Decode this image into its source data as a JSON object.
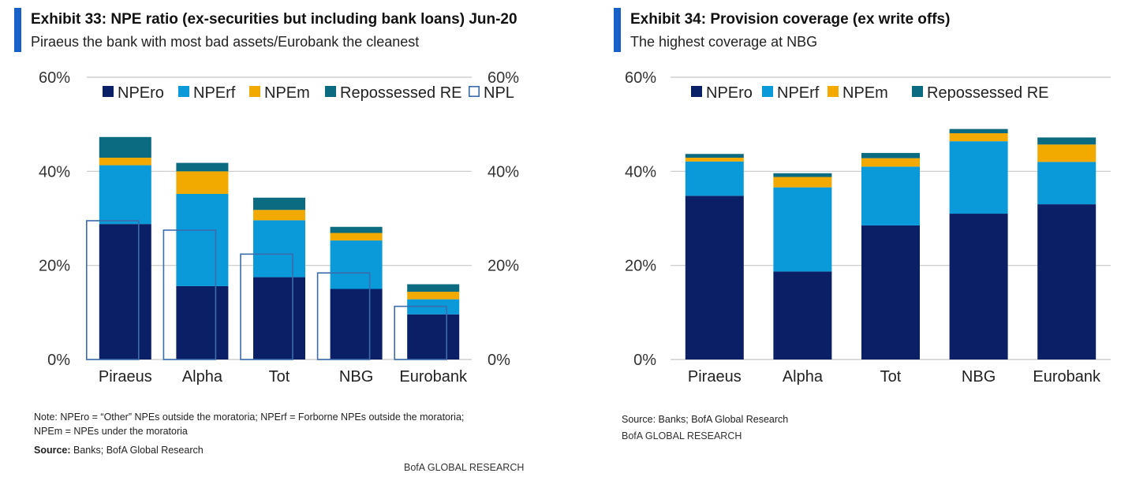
{
  "left": {
    "title": "Exhibit 33: NPE ratio (ex-securities but including bank loans) Jun-20",
    "subtitle": "Piraeus the bank with most bad assets/Eurobank the cleanest",
    "note_line1": "Note: NPEro = “Other” NPEs  outside the moratoria; NPErf = Forborne NPEs outside  the moratoria;",
    "note_line2": "NPEm = NPEs under the moratoria",
    "source_label": "Source:",
    "source_text": " Banks; BofA Global Research",
    "credit": "BofA GLOBAL RESEARCH"
  },
  "right": {
    "title": "Exhibit 34: Provision coverage (ex write offs)",
    "subtitle": "The highest coverage at NBG",
    "source": "Source:  Banks; BofA Global Research",
    "credit": "BofA GLOBAL RESEARCH"
  },
  "colors": {
    "NPEro": "#0b1f66",
    "NPErf": "#0a9ad9",
    "NPEm": "#f2a900",
    "Repossessed RE": "#0b6b80",
    "NPL": "#3b6cab",
    "grid": "#c8c8c8"
  },
  "chart_data": [
    {
      "type": "bar",
      "stacked": true,
      "categories": [
        "Piraeus",
        "Alpha",
        "Tot",
        "NBG",
        "Eurobank"
      ],
      "series": [
        {
          "name": "NPEro",
          "values": [
            28.8,
            15.6,
            17.5,
            15.0,
            9.6
          ]
        },
        {
          "name": "NPErf",
          "values": [
            12.5,
            19.6,
            12.1,
            10.3,
            3.2
          ]
        },
        {
          "name": "NPEm",
          "values": [
            1.6,
            4.8,
            2.2,
            1.6,
            1.6
          ]
        },
        {
          "name": "Repossessed RE",
          "values": [
            4.4,
            1.8,
            2.6,
            1.3,
            1.6
          ]
        }
      ],
      "outline_series": {
        "name": "NPL",
        "values": [
          29.5,
          27.5,
          22.4,
          18.4,
          11.3
        ]
      },
      "yticks": [
        "0%",
        "20%",
        "40%",
        "60%"
      ],
      "ylim": [
        0,
        60
      ],
      "secondary_axis": true,
      "legend": [
        "NPEro",
        "NPErf",
        "NPEm",
        "Repossessed RE",
        "NPL"
      ]
    },
    {
      "type": "bar",
      "stacked": true,
      "categories": [
        "Piraeus",
        "Alpha",
        "Tot",
        "NBG",
        "Eurobank"
      ],
      "series": [
        {
          "name": "NPEro",
          "values": [
            34.8,
            18.7,
            28.5,
            31.0,
            33.0
          ]
        },
        {
          "name": "NPErf",
          "values": [
            7.3,
            17.9,
            12.5,
            15.4,
            9.0
          ]
        },
        {
          "name": "NPEm",
          "values": [
            0.8,
            2.2,
            1.8,
            1.7,
            3.7
          ]
        },
        {
          "name": "Repossessed RE",
          "values": [
            0.8,
            0.8,
            1.1,
            0.9,
            1.5
          ]
        }
      ],
      "yticks": [
        "0%",
        "20%",
        "40%",
        "60%"
      ],
      "ylim": [
        0,
        60
      ],
      "legend": [
        "NPEro",
        "NPErf",
        "NPEm",
        "Repossessed RE"
      ]
    }
  ]
}
